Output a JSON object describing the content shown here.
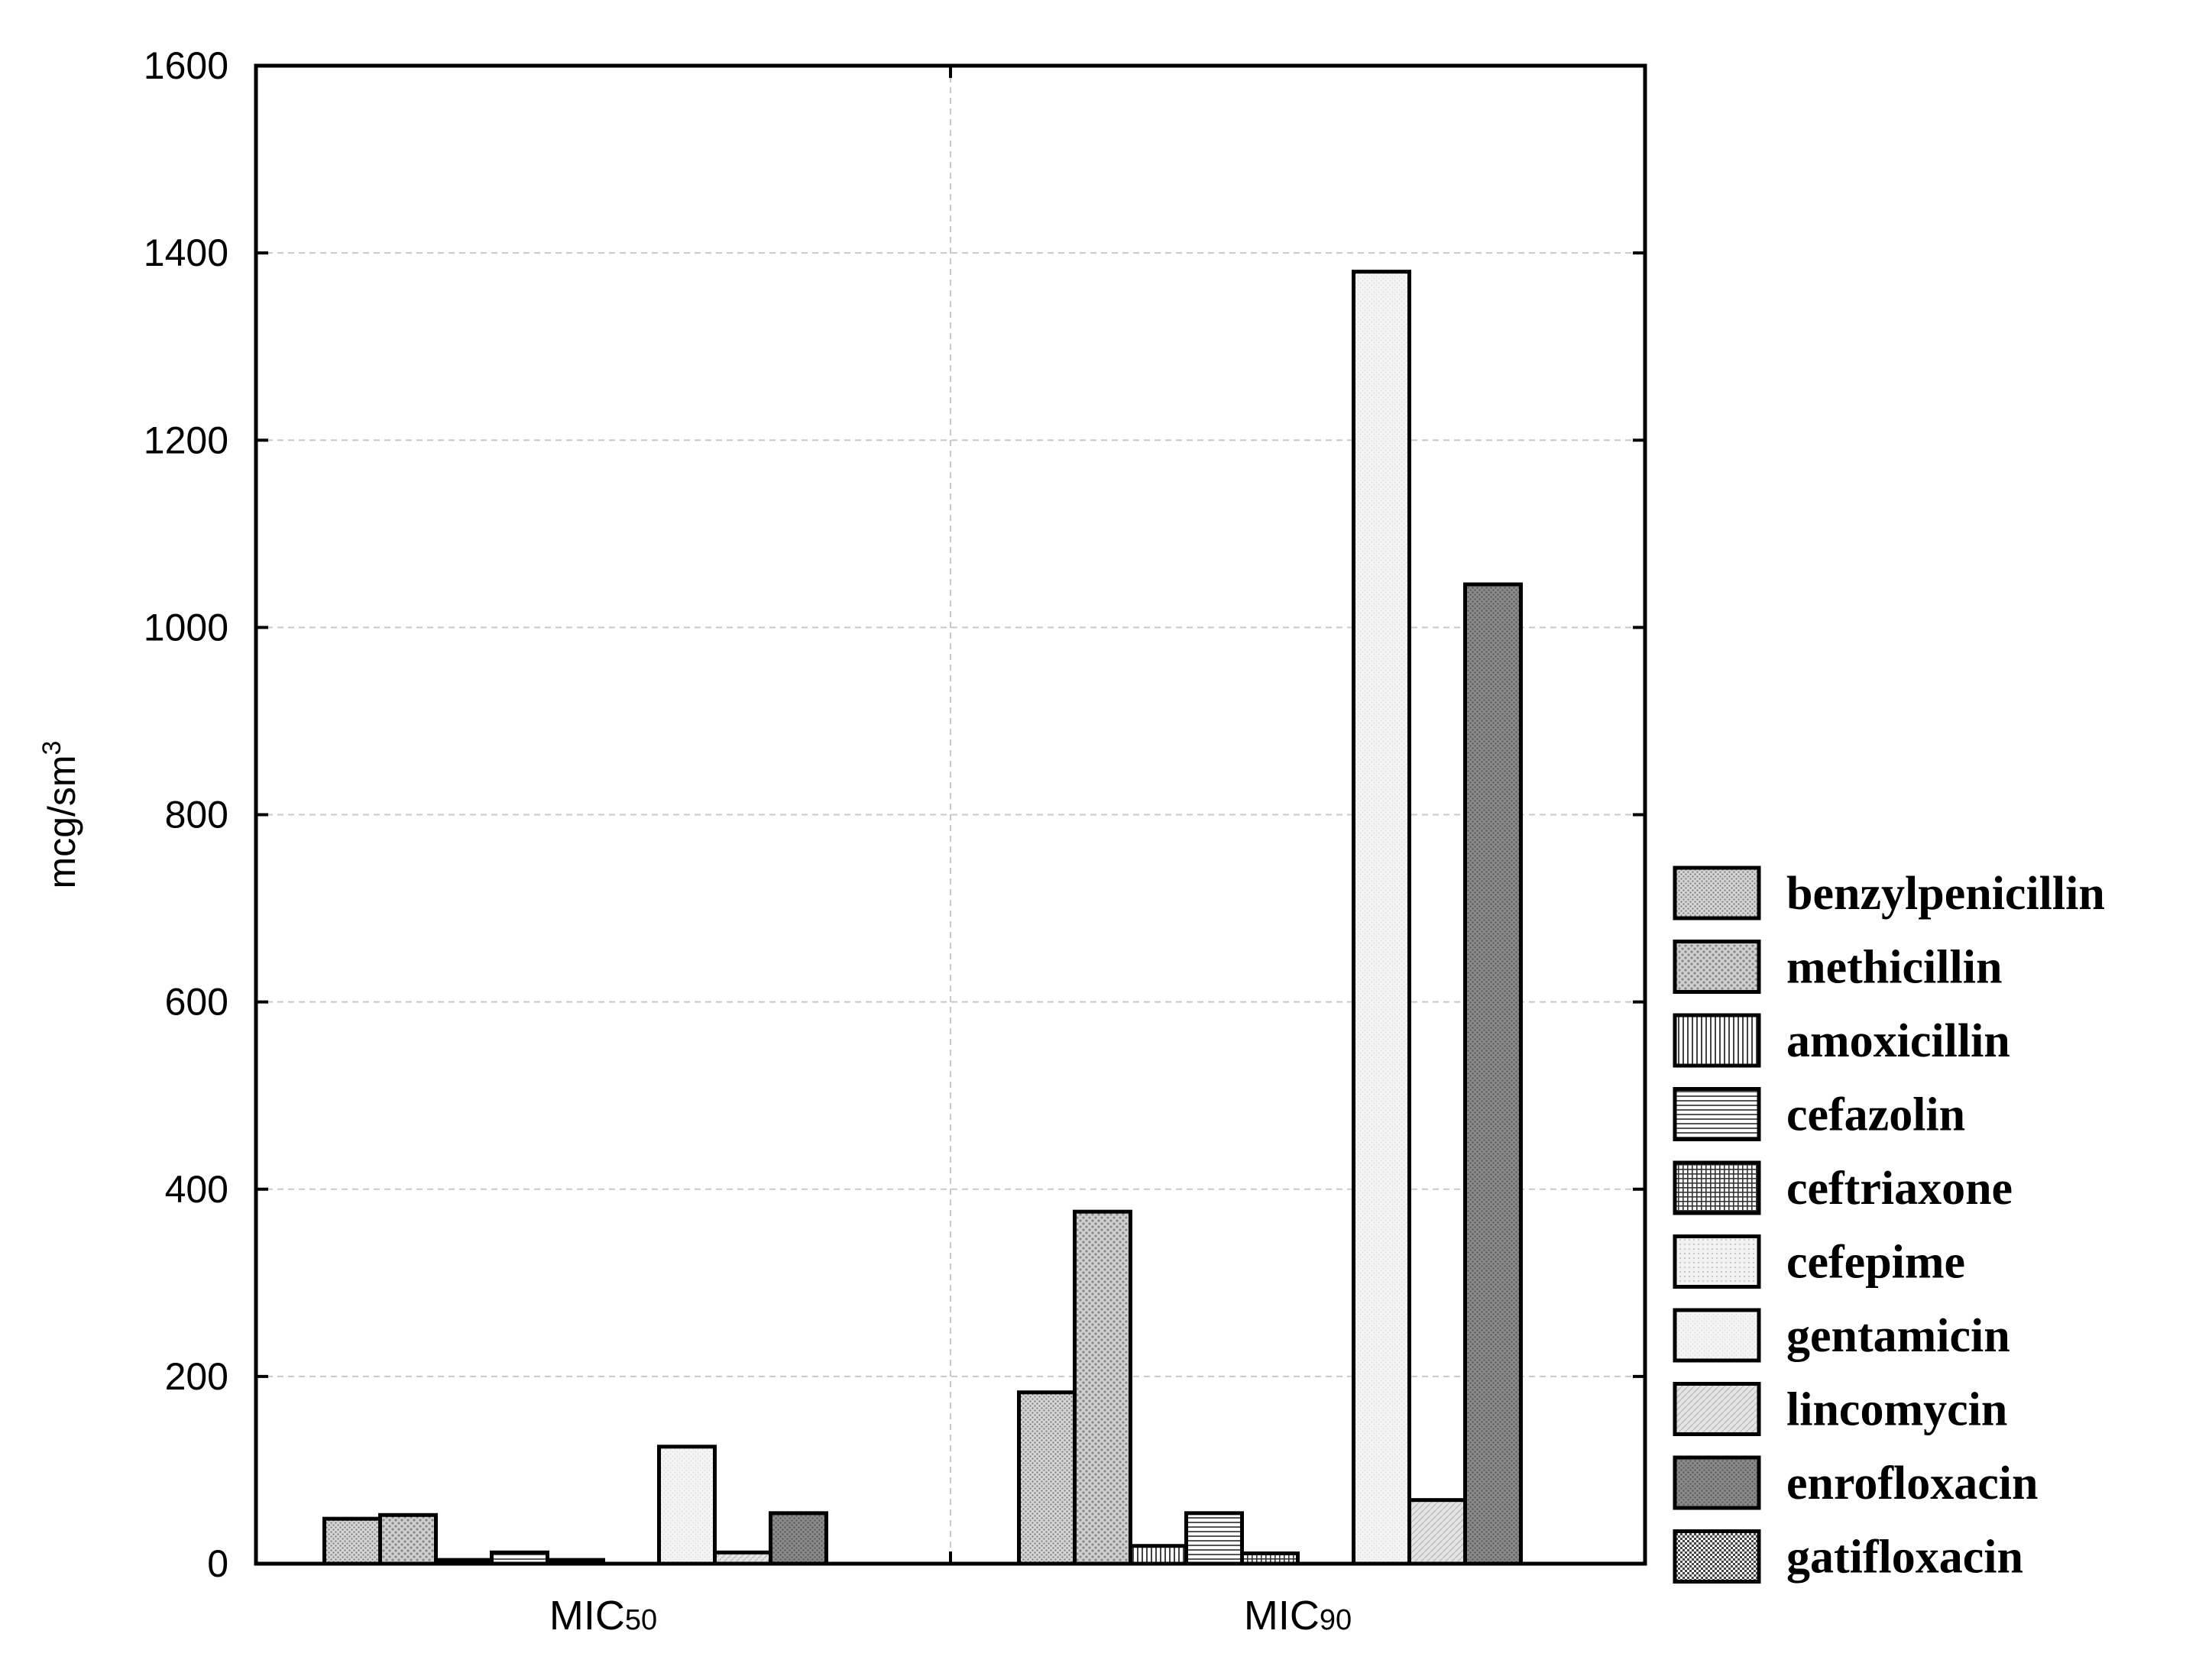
{
  "chart_data": {
    "type": "bar",
    "ylabel": "mcg/sm",
    "ylabel_superscript": "3",
    "ylim": [
      0,
      1600
    ],
    "yticks": [
      "0",
      "200",
      "400",
      "600",
      "800",
      "1000",
      "1200",
      "1400",
      "1600"
    ],
    "grid": true,
    "legend_position": "right",
    "categories": [
      {
        "main": "MIC",
        "sub": "50"
      },
      {
        "main": "MIC",
        "sub": "90"
      }
    ],
    "series": [
      {
        "name": "benzylpenicillin",
        "values": [
          48,
          183
        ],
        "pattern": "pat-dots-fine"
      },
      {
        "name": "methicillin",
        "values": [
          52,
          376
        ],
        "pattern": "pat-dots-medium"
      },
      {
        "name": "amoxicillin",
        "values": [
          4,
          19
        ],
        "pattern": "pat-vlines"
      },
      {
        "name": "cefazolin",
        "values": [
          12,
          54
        ],
        "pattern": "pat-hlines"
      },
      {
        "name": "ceftriaxone",
        "values": [
          4,
          11
        ],
        "pattern": "pat-grid"
      },
      {
        "name": "cefepime",
        "values": [
          0,
          0
        ],
        "pattern": "pat-light-dots"
      },
      {
        "name": "gentamicin",
        "values": [
          125,
          1380
        ],
        "pattern": "pat-very-light"
      },
      {
        "name": "lincomycin",
        "values": [
          12,
          68
        ],
        "pattern": "pat-diag"
      },
      {
        "name": "enrofloxacin",
        "values": [
          54,
          1046
        ],
        "pattern": "pat-dark"
      },
      {
        "name": "gatifloxacin",
        "values": [
          0,
          0
        ],
        "pattern": "pat-checker"
      }
    ]
  }
}
